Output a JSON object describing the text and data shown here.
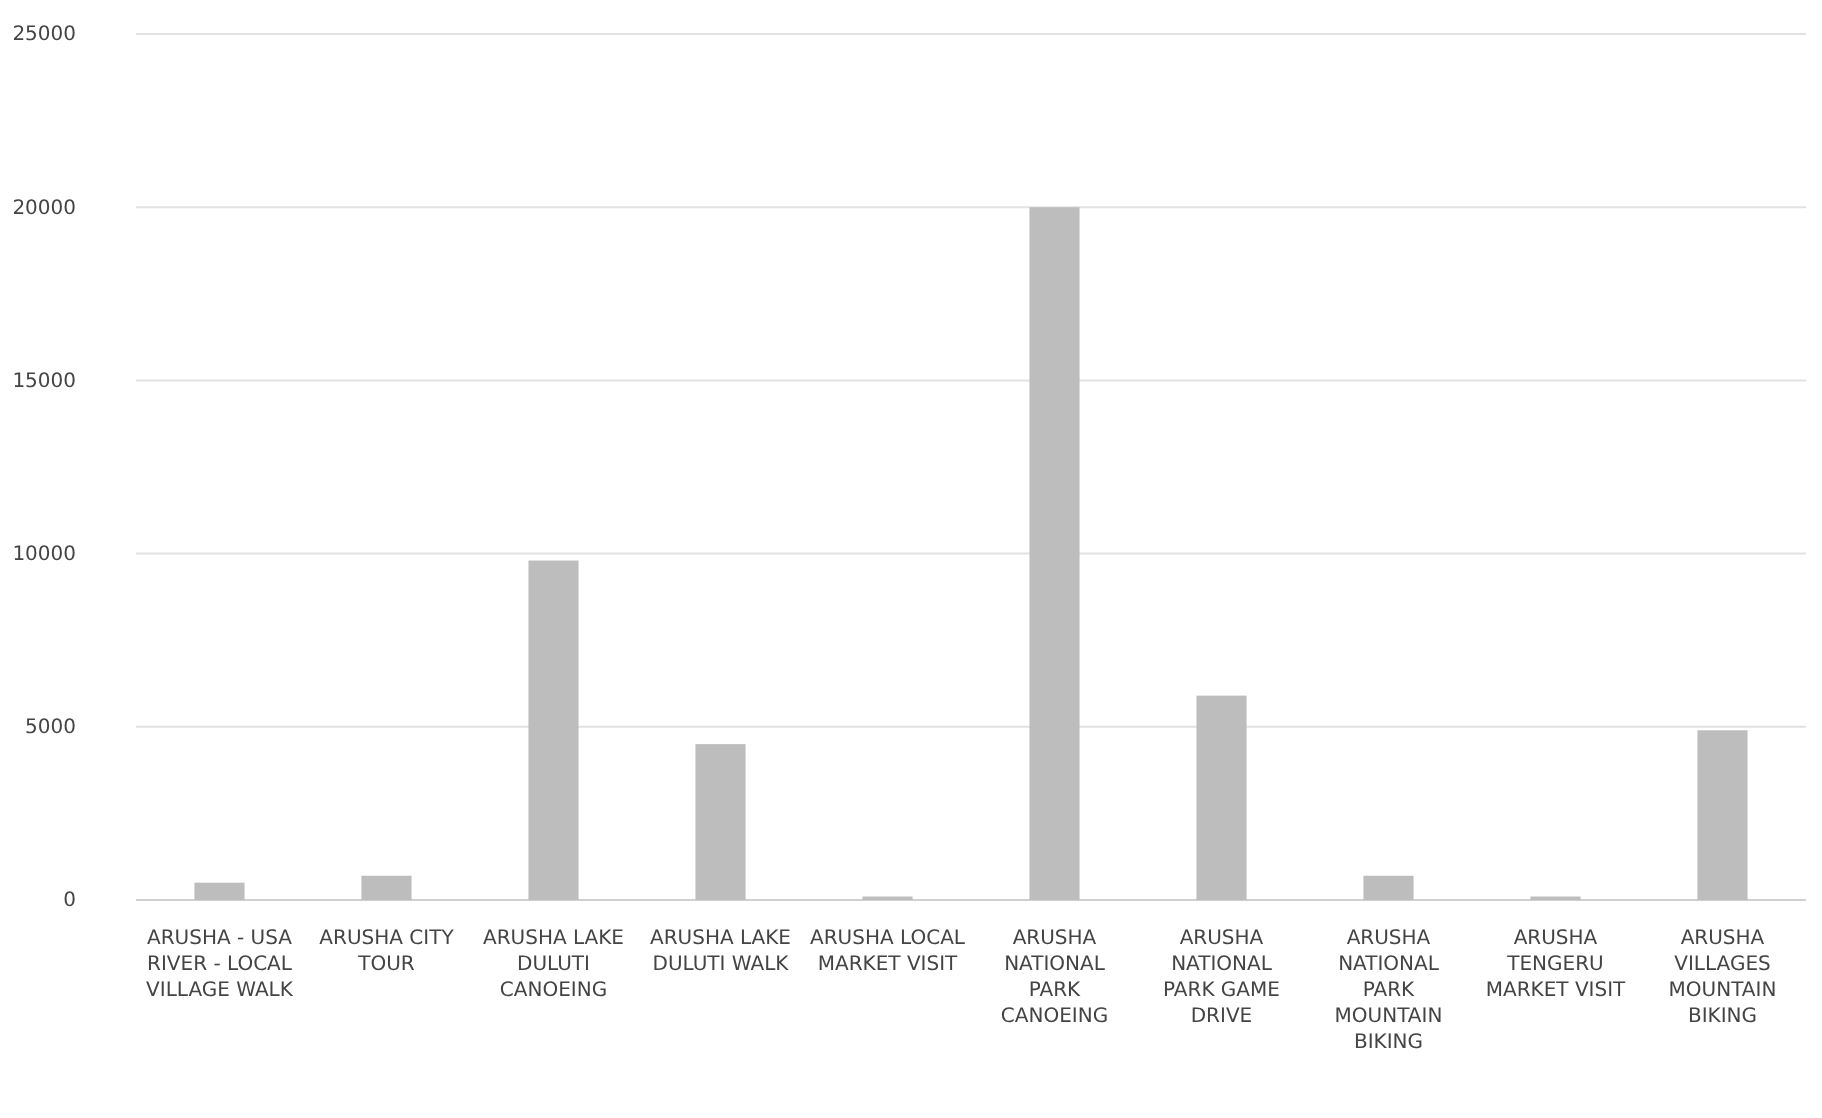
{
  "chart_data": {
    "type": "bar",
    "categories": [
      "ARUSHA - USA RIVER - LOCAL VILLAGE WALK",
      "ARUSHA CITY TOUR",
      "ARUSHA LAKE DULUTI CANOEING",
      "ARUSHA LAKE DULUTI WALK",
      "ARUSHA LOCAL MARKET VISIT",
      "ARUSHA NATIONAL PARK CANOEING",
      "ARUSHA NATIONAL PARK GAME DRIVE",
      "ARUSHA NATIONAL PARK MOUNTAIN BIKING",
      "ARUSHA TENGERU MARKET VISIT",
      "ARUSHA VILLAGES MOUNTAIN BIKING"
    ],
    "values": [
      500,
      700,
      9800,
      4500,
      100,
      20000,
      5900,
      700,
      100,
      4900
    ],
    "color": "#bdbdbd",
    "ylim": [
      0,
      25000
    ],
    "yticks": [
      0,
      5000,
      10000,
      15000,
      20000,
      25000
    ],
    "grid": "y"
  }
}
